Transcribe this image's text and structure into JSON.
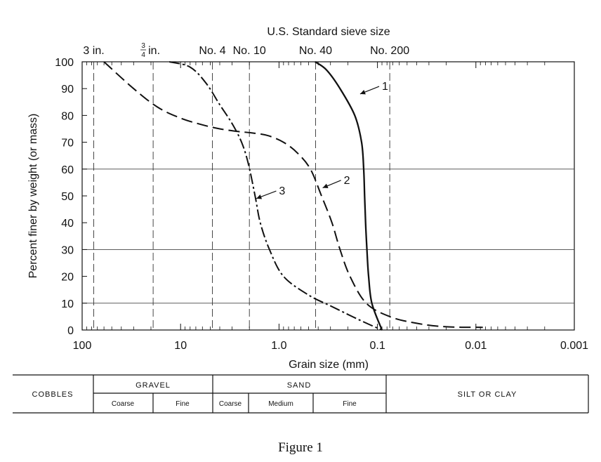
{
  "chart_data": {
    "type": "line",
    "title": "",
    "top_axis_title": "U.S. Standard sieve size",
    "top_labels": [
      {
        "label": "3 in.",
        "x": 76.2
      },
      {
        "label": "in.",
        "fraction_num": "3",
        "fraction_den": "4",
        "x": 19.0
      },
      {
        "label": "No. 4",
        "x": 4.75
      },
      {
        "label": "No. 10",
        "x": 2.0
      },
      {
        "label": "No. 40",
        "x": 0.425
      },
      {
        "label": "No. 200",
        "x": 0.075
      }
    ],
    "xlabel": "Grain size (mm)",
    "ylabel": "Percent finer by weight (or mass)",
    "x_scale": "log",
    "x_reversed": true,
    "xlim": [
      100,
      0.001
    ],
    "ylim": [
      0,
      100
    ],
    "x_ticks": [
      {
        "value": 100,
        "label": "100"
      },
      {
        "value": 10,
        "label": "10"
      },
      {
        "value": 1,
        "label": "1.0"
      },
      {
        "value": 0.1,
        "label": "0.1"
      },
      {
        "value": 0.01,
        "label": "0.01"
      },
      {
        "value": 0.001,
        "label": "0.001"
      }
    ],
    "y_ticks": [
      "0",
      "10",
      "20",
      "30",
      "40",
      "50",
      "60",
      "70",
      "80",
      "90",
      "100"
    ],
    "grid_y": [
      10,
      30,
      60
    ],
    "sieve_lines_x": [
      76.2,
      19.0,
      4.75,
      2.0,
      0.425,
      0.075
    ],
    "series": [
      {
        "name": "1",
        "style": "solid",
        "points": [
          [
            0.43,
            100
          ],
          [
            0.33,
            97
          ],
          [
            0.24,
            90
          ],
          [
            0.17,
            80
          ],
          [
            0.145,
            70
          ],
          [
            0.138,
            60
          ],
          [
            0.135,
            50
          ],
          [
            0.132,
            40
          ],
          [
            0.128,
            30
          ],
          [
            0.123,
            20
          ],
          [
            0.114,
            10
          ],
          [
            0.09,
            0
          ]
        ]
      },
      {
        "name": "2",
        "style": "dashed",
        "points": [
          [
            60,
            100
          ],
          [
            30,
            90
          ],
          [
            17,
            83
          ],
          [
            10,
            79
          ],
          [
            6,
            76.5
          ],
          [
            4,
            75
          ],
          [
            2.6,
            74
          ],
          [
            1.9,
            73.5
          ],
          [
            1.3,
            72.5
          ],
          [
            0.9,
            70
          ],
          [
            0.65,
            66
          ],
          [
            0.48,
            60
          ],
          [
            0.37,
            50
          ],
          [
            0.29,
            40
          ],
          [
            0.24,
            30
          ],
          [
            0.19,
            20
          ],
          [
            0.13,
            10
          ],
          [
            0.075,
            5
          ],
          [
            0.04,
            2.5
          ],
          [
            0.02,
            1.2
          ],
          [
            0.0085,
            1
          ]
        ]
      },
      {
        "name": "3",
        "style": "dash-dot",
        "points": [
          [
            13,
            100
          ],
          [
            8,
            98
          ],
          [
            5.5,
            92
          ],
          [
            4,
            84
          ],
          [
            3,
            77
          ],
          [
            2.4,
            70
          ],
          [
            2.05,
            62
          ],
          [
            1.75,
            50
          ],
          [
            1.55,
            40
          ],
          [
            1.25,
            30
          ],
          [
            0.9,
            20
          ],
          [
            0.5,
            13
          ],
          [
            0.3,
            9
          ],
          [
            0.18,
            5
          ],
          [
            0.12,
            2
          ],
          [
            0.09,
            0
          ]
        ]
      }
    ],
    "annotations": [
      {
        "text": "1",
        "series": "1",
        "arrow_tip": [
          0.15,
          88
        ],
        "text_pos": [
          0.09,
          89.5
        ]
      },
      {
        "text": "2",
        "series": "2",
        "arrow_tip": [
          0.36,
          53
        ],
        "text_pos": [
          0.22,
          54.5
        ]
      },
      {
        "text": "3",
        "series": "3",
        "arrow_tip": [
          1.7,
          49
        ],
        "text_pos": [
          1.0,
          50.5
        ]
      }
    ]
  },
  "classification": {
    "cobbles": "COBBLES",
    "gravel": "GRAVEL",
    "gravel_coarse": "Coarse",
    "gravel_fine": "Fine",
    "sand": "SAND",
    "sand_coarse": "Coarse",
    "sand_medium": "Medium",
    "sand_fine": "Fine",
    "silt_clay": "SILT OR CLAY"
  },
  "caption": "Figure 1"
}
